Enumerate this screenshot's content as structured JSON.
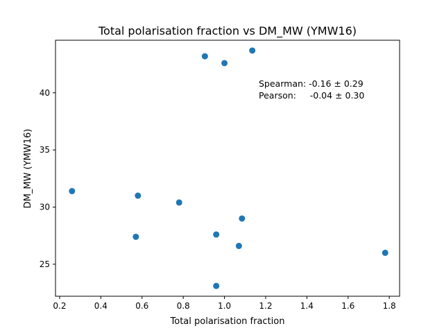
{
  "chart_data": {
    "type": "scatter",
    "title": "Total polarisation fraction vs DM_MW (YMW16)",
    "xlabel": "Total polarisation fraction",
    "ylabel": "DM_MW (YMW16)",
    "xlim": [
      0.18,
      1.85
    ],
    "ylim": [
      22.2,
      44.6
    ],
    "xticks": [
      0.2,
      0.4,
      0.6,
      0.8,
      1.0,
      1.2,
      1.4,
      1.6,
      1.8
    ],
    "xtick_labels": [
      "0.2",
      "0.4",
      "0.6",
      "0.8",
      "1.0",
      "1.2",
      "1.4",
      "1.6",
      "1.8"
    ],
    "yticks": [
      25,
      30,
      35,
      40
    ],
    "ytick_labels": [
      "25",
      "30",
      "35",
      "40"
    ],
    "grid": false,
    "marker_color": "#1f77b4",
    "annotations": [
      "Spearman: -0.16 ± 0.29",
      "Pearson:     -0.04 ± 0.30"
    ],
    "points": [
      {
        "x": 0.26,
        "y": 31.4
      },
      {
        "x": 0.57,
        "y": 27.4
      },
      {
        "x": 0.58,
        "y": 31.0
      },
      {
        "x": 0.78,
        "y": 30.4
      },
      {
        "x": 0.905,
        "y": 43.2
      },
      {
        "x": 0.96,
        "y": 27.6
      },
      {
        "x": 0.96,
        "y": 23.1
      },
      {
        "x": 1.0,
        "y": 42.6
      },
      {
        "x": 1.07,
        "y": 26.6
      },
      {
        "x": 1.085,
        "y": 29.0
      },
      {
        "x": 1.135,
        "y": 43.7
      },
      {
        "x": 1.78,
        "y": 26.0
      }
    ]
  }
}
